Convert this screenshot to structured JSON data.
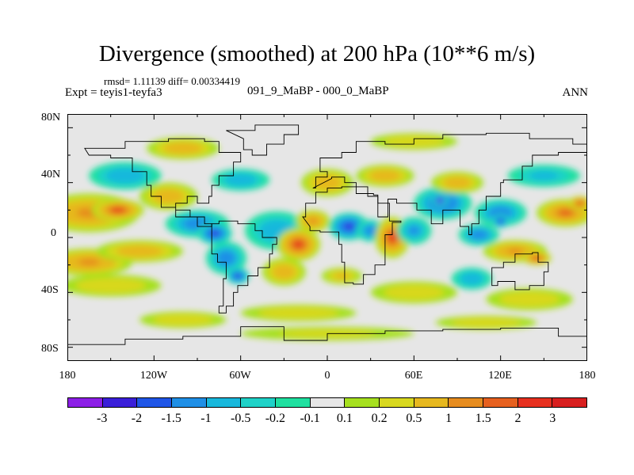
{
  "title": "Divergence (smoothed) at 200 hPa (10**6 m/s)",
  "stats": "rmsd= 1.11139  diff= 0.00334419",
  "left_label": "Expt = teyis1-teyfa3",
  "center_label": "091_9_MaBP - 000_0_MaBP",
  "right_label": "ANN",
  "lat_labels": [
    "80N",
    "40N",
    "0",
    "40S",
    "80S"
  ],
  "lon_labels": [
    "180",
    "120W",
    "60W",
    "0",
    "60E",
    "120E",
    "180"
  ],
  "colorbar": {
    "colors": [
      "#8c1fe6",
      "#3a1fd9",
      "#1f55e6",
      "#1f8fe6",
      "#18b8dc",
      "#1fd2c8",
      "#1fe0a0",
      "#e6e6e6",
      "#a6e01f",
      "#d8d81f",
      "#e6b81f",
      "#e68c1f",
      "#e6601f",
      "#e6301f",
      "#d81f1f"
    ],
    "labels": [
      "-3",
      "-2",
      "-1.5",
      "-1",
      "-0.5",
      "-0.2",
      "-0.1",
      "0.1",
      "0.2",
      "0.5",
      "1",
      "1.5",
      "2",
      "3"
    ]
  },
  "map_blobs": [
    {
      "lon": -165,
      "lat": 18,
      "rx": 35,
      "ry": 14,
      "v": 1.5
    },
    {
      "lon": -145,
      "lat": 20,
      "rx": 18,
      "ry": 8,
      "v": 2.3
    },
    {
      "lon": -110,
      "lat": 30,
      "rx": 20,
      "ry": 10,
      "v": 1.0
    },
    {
      "lon": -90,
      "lat": 10,
      "rx": 22,
      "ry": 10,
      "v": -1.2
    },
    {
      "lon": -78,
      "lat": 3,
      "rx": 12,
      "ry": 8,
      "v": -2.5
    },
    {
      "lon": -70,
      "lat": -15,
      "rx": 14,
      "ry": 12,
      "v": -1.5
    },
    {
      "lon": -62,
      "lat": -28,
      "rx": 8,
      "ry": 6,
      "v": -2.8
    },
    {
      "lon": -35,
      "lat": 5,
      "rx": 22,
      "ry": 14,
      "v": -0.8
    },
    {
      "lon": -20,
      "lat": -5,
      "rx": 15,
      "ry": 12,
      "v": 2.6
    },
    {
      "lon": -10,
      "lat": 12,
      "rx": 12,
      "ry": 8,
      "v": 1.2
    },
    {
      "lon": 15,
      "lat": 8,
      "rx": 14,
      "ry": 10,
      "v": -2.2
    },
    {
      "lon": 30,
      "lat": 5,
      "rx": 10,
      "ry": 8,
      "v": -1.5
    },
    {
      "lon": 45,
      "lat": 0,
      "rx": 12,
      "ry": 15,
      "v": 2.4
    },
    {
      "lon": 60,
      "lat": 5,
      "rx": 12,
      "ry": 10,
      "v": -1.0
    },
    {
      "lon": 80,
      "lat": 25,
      "rx": 20,
      "ry": 12,
      "v": -1.6
    },
    {
      "lon": 78,
      "lat": 27,
      "rx": 6,
      "ry": 5,
      "v": -3.2
    },
    {
      "lon": 90,
      "lat": 40,
      "rx": 18,
      "ry": 8,
      "v": 0.8
    },
    {
      "lon": 120,
      "lat": 18,
      "rx": 18,
      "ry": 10,
      "v": -1.5
    },
    {
      "lon": 120,
      "lat": 12,
      "rx": 6,
      "ry": 5,
      "v": -3.0
    },
    {
      "lon": 105,
      "lat": 2,
      "rx": 14,
      "ry": 8,
      "v": -1.2
    },
    {
      "lon": 130,
      "lat": -10,
      "rx": 22,
      "ry": 8,
      "v": 1.5
    },
    {
      "lon": 145,
      "lat": -15,
      "rx": 10,
      "ry": 5,
      "v": 2.2
    },
    {
      "lon": 165,
      "lat": 18,
      "rx": 20,
      "ry": 10,
      "v": 1.6
    },
    {
      "lon": 175,
      "lat": 25,
      "rx": 8,
      "ry": 5,
      "v": 2.2
    },
    {
      "lon": -165,
      "lat": -18,
      "rx": 30,
      "ry": 10,
      "v": 1.4
    },
    {
      "lon": -130,
      "lat": -10,
      "rx": 30,
      "ry": 8,
      "v": 0.8
    },
    {
      "lon": -150,
      "lat": -35,
      "rx": 35,
      "ry": 8,
      "v": 0.3
    },
    {
      "lon": -30,
      "lat": -25,
      "rx": 15,
      "ry": 10,
      "v": 1.0
    },
    {
      "lon": 10,
      "lat": -28,
      "rx": 14,
      "ry": 6,
      "v": 0.5
    },
    {
      "lon": 60,
      "lat": -40,
      "rx": 30,
      "ry": 8,
      "v": 0.4
    },
    {
      "lon": 140,
      "lat": -45,
      "rx": 30,
      "ry": 8,
      "v": 0.4
    },
    {
      "lon": 100,
      "lat": -30,
      "rx": 14,
      "ry": 8,
      "v": -0.8
    },
    {
      "lon": 0,
      "lat": 40,
      "rx": 18,
      "ry": 10,
      "v": 0.6
    },
    {
      "lon": -60,
      "lat": 42,
      "rx": 20,
      "ry": 8,
      "v": -0.7
    },
    {
      "lon": -140,
      "lat": 45,
      "rx": 25,
      "ry": 10,
      "v": -0.6
    },
    {
      "lon": 40,
      "lat": 45,
      "rx": 20,
      "ry": 8,
      "v": 0.7
    },
    {
      "lon": 150,
      "lat": 45,
      "rx": 25,
      "ry": 8,
      "v": -0.5
    },
    {
      "lon": -100,
      "lat": 65,
      "rx": 25,
      "ry": 8,
      "v": 0.6
    },
    {
      "lon": 60,
      "lat": 70,
      "rx": 30,
      "ry": 6,
      "v": 0.4
    },
    {
      "lon": -20,
      "lat": -55,
      "rx": 40,
      "ry": 6,
      "v": 0.3
    },
    {
      "lon": 0,
      "lat": -70,
      "rx": 60,
      "ry": 5,
      "v": 0.2
    },
    {
      "lon": -100,
      "lat": -60,
      "rx": 30,
      "ry": 6,
      "v": 0.3
    },
    {
      "lon": 110,
      "lat": -62,
      "rx": 35,
      "ry": 5,
      "v": 0.3
    }
  ],
  "land_outline": [
    {
      "name": "north-america",
      "pts": [
        [
          -168,
          65
        ],
        [
          -140,
          70
        ],
        [
          -110,
          72
        ],
        [
          -85,
          70
        ],
        [
          -75,
          62
        ],
        [
          -60,
          55
        ],
        [
          -65,
          45
        ],
        [
          -75,
          38
        ],
        [
          -80,
          30
        ],
        [
          -82,
          25
        ],
        [
          -90,
          30
        ],
        [
          -97,
          25
        ],
        [
          -105,
          20
        ],
        [
          -95,
          15
        ],
        [
          -85,
          10
        ],
        [
          -80,
          8
        ],
        [
          -90,
          15
        ],
        [
          -105,
          22
        ],
        [
          -115,
          30
        ],
        [
          -122,
          38
        ],
        [
          -125,
          48
        ],
        [
          -135,
          58
        ],
        [
          -150,
          60
        ],
        [
          -165,
          60
        ]
      ]
    },
    {
      "name": "south-america",
      "pts": [
        [
          -80,
          10
        ],
        [
          -75,
          12
        ],
        [
          -62,
          10
        ],
        [
          -50,
          5
        ],
        [
          -45,
          0
        ],
        [
          -35,
          -5
        ],
        [
          -38,
          -12
        ],
        [
          -40,
          -22
        ],
        [
          -48,
          -28
        ],
        [
          -55,
          -35
        ],
        [
          -62,
          -40
        ],
        [
          -65,
          -50
        ],
        [
          -70,
          -55
        ],
        [
          -75,
          -50
        ],
        [
          -72,
          -40
        ],
        [
          -72,
          -30
        ],
        [
          -70,
          -18
        ],
        [
          -76,
          -12
        ],
        [
          -80,
          -5
        ],
        [
          -80,
          2
        ]
      ]
    },
    {
      "name": "greenland",
      "pts": [
        [
          -70,
          78
        ],
        [
          -50,
          82
        ],
        [
          -25,
          82
        ],
        [
          -20,
          75
        ],
        [
          -30,
          68
        ],
        [
          -42,
          60
        ],
        [
          -52,
          64
        ],
        [
          -58,
          72
        ]
      ]
    },
    {
      "name": "africa",
      "pts": [
        [
          -17,
          15
        ],
        [
          -15,
          25
        ],
        [
          -8,
          33
        ],
        [
          0,
          36
        ],
        [
          10,
          37
        ],
        [
          20,
          32
        ],
        [
          32,
          31
        ],
        [
          35,
          25
        ],
        [
          43,
          12
        ],
        [
          51,
          11
        ],
        [
          45,
          2
        ],
        [
          40,
          -10
        ],
        [
          40,
          -20
        ],
        [
          33,
          -27
        ],
        [
          25,
          -34
        ],
        [
          18,
          -33
        ],
        [
          12,
          -18
        ],
        [
          10,
          -5
        ],
        [
          8,
          4
        ],
        [
          -5,
          5
        ],
        [
          -12,
          8
        ]
      ]
    },
    {
      "name": "eurasia",
      "pts": [
        [
          -10,
          36
        ],
        [
          -8,
          44
        ],
        [
          0,
          48
        ],
        [
          -5,
          58
        ],
        [
          10,
          62
        ],
        [
          20,
          70
        ],
        [
          40,
          68
        ],
        [
          60,
          72
        ],
        [
          80,
          75
        ],
        [
          110,
          76
        ],
        [
          140,
          72
        ],
        [
          170,
          68
        ],
        [
          180,
          66
        ],
        [
          180,
          62
        ],
        [
          160,
          60
        ],
        [
          142,
          52
        ],
        [
          135,
          42
        ],
        [
          122,
          40
        ],
        [
          120,
          30
        ],
        [
          110,
          20
        ],
        [
          105,
          10
        ],
        [
          100,
          2
        ],
        [
          98,
          8
        ],
        [
          92,
          20
        ],
        [
          80,
          10
        ],
        [
          72,
          20
        ],
        [
          62,
          25
        ],
        [
          55,
          25
        ],
        [
          48,
          28
        ],
        [
          42,
          15
        ],
        [
          35,
          30
        ],
        [
          28,
          37
        ],
        [
          20,
          40
        ],
        [
          12,
          44
        ],
        [
          3,
          43
        ]
      ]
    },
    {
      "name": "australia",
      "pts": [
        [
          114,
          -22
        ],
        [
          122,
          -18
        ],
        [
          130,
          -12
        ],
        [
          137,
          -12
        ],
        [
          142,
          -11
        ],
        [
          146,
          -18
        ],
        [
          153,
          -25
        ],
        [
          150,
          -35
        ],
        [
          140,
          -38
        ],
        [
          130,
          -32
        ],
        [
          118,
          -35
        ],
        [
          114,
          -30
        ]
      ]
    },
    {
      "name": "antarctica",
      "pts": [
        [
          -180,
          -78
        ],
        [
          -140,
          -74
        ],
        [
          -100,
          -72
        ],
        [
          -60,
          -65
        ],
        [
          -30,
          -75
        ],
        [
          0,
          -70
        ],
        [
          40,
          -68
        ],
        [
          80,
          -67
        ],
        [
          120,
          -66
        ],
        [
          160,
          -72
        ],
        [
          180,
          -78
        ]
      ]
    }
  ]
}
